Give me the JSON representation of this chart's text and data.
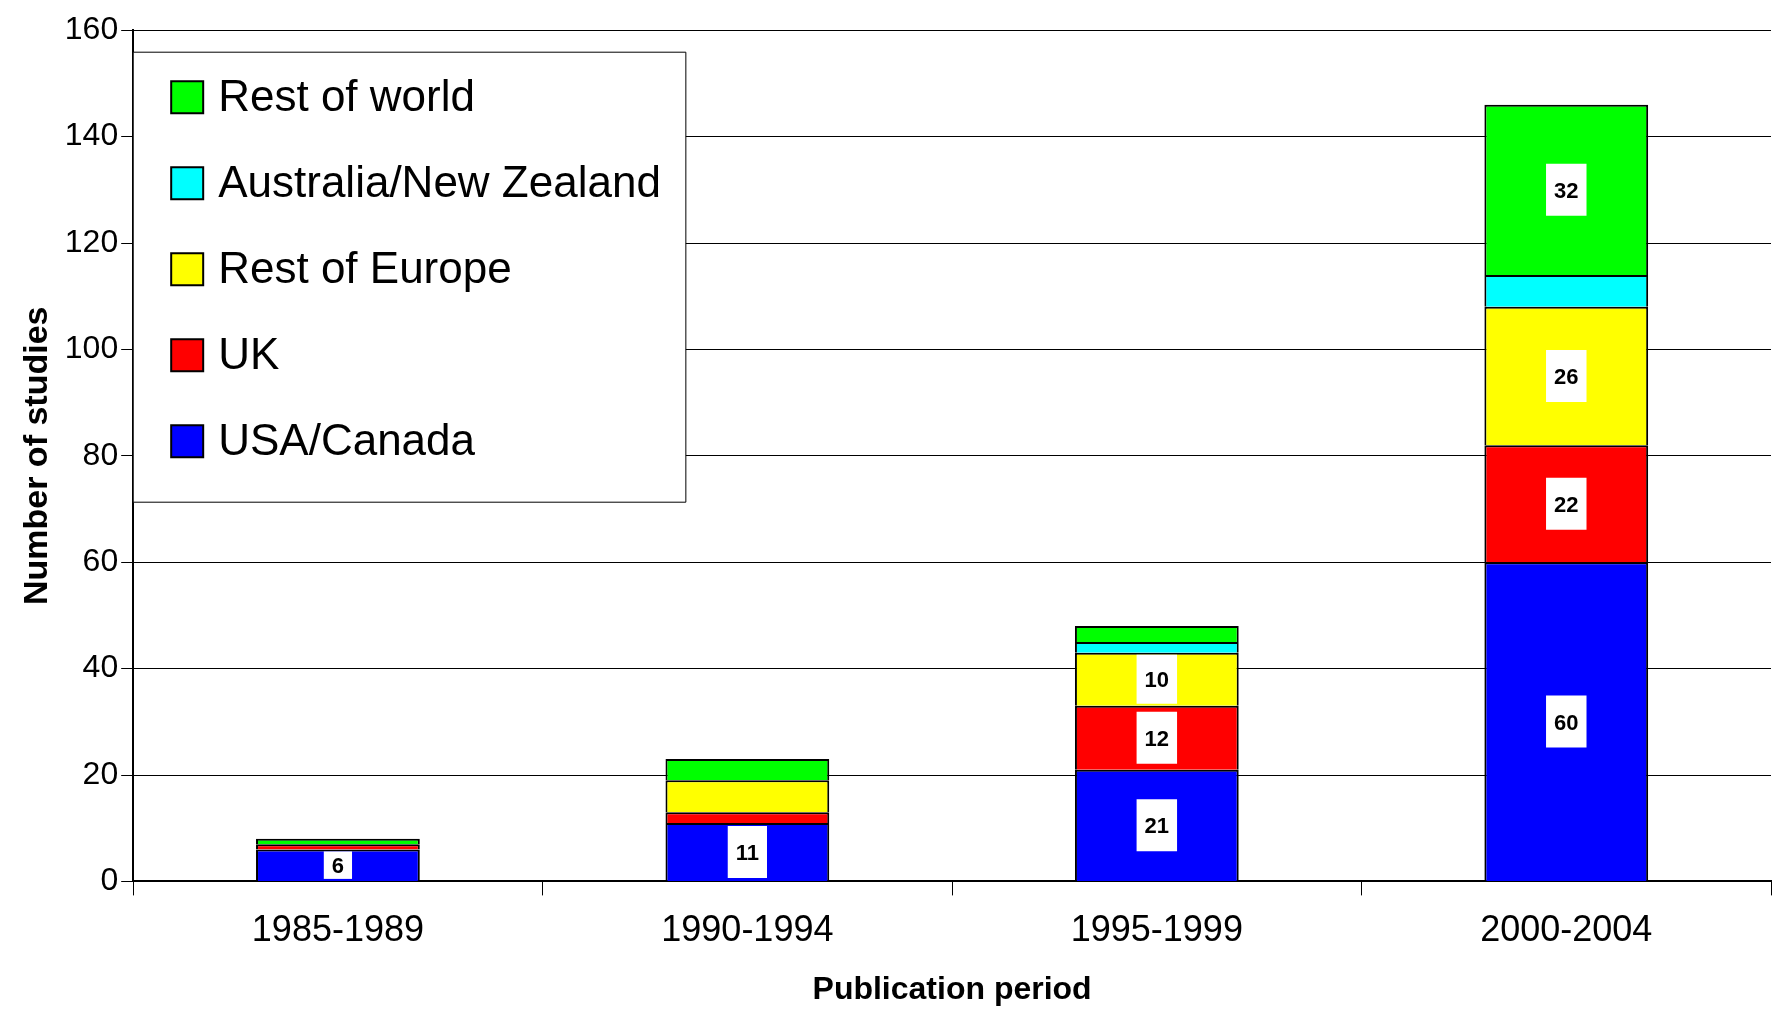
{
  "chart_data": {
    "type": "bar",
    "stacked": true,
    "xlabel": "Publication period",
    "ylabel": "Number of studies",
    "categories": [
      "1985-1989",
      "1990-1994",
      "1995-1999",
      "2000-2004"
    ],
    "series": [
      {
        "name": "USA/Canada",
        "color": "#0000ff",
        "values": [
          6,
          11,
          21,
          60
        ],
        "value_labels": [
          "6",
          "11",
          "21",
          "60"
        ]
      },
      {
        "name": "UK",
        "color": "#ff0000",
        "values": [
          1,
          2,
          12,
          22
        ],
        "value_labels": [
          null,
          null,
          "12",
          "22"
        ]
      },
      {
        "name": "Rest of Europe",
        "color": "#ffff00",
        "values": [
          0,
          6,
          10,
          26
        ],
        "value_labels": [
          null,
          null,
          "10",
          "26"
        ]
      },
      {
        "name": "Australia/New Zealand",
        "color": "#00ffff",
        "values": [
          0,
          0,
          2,
          6
        ],
        "value_labels": [
          null,
          null,
          null,
          null
        ]
      },
      {
        "name": "Rest of world",
        "color": "#00ff00",
        "values": [
          1,
          4,
          3,
          32
        ],
        "value_labels": [
          null,
          null,
          null,
          "32"
        ]
      }
    ],
    "ylim": [
      0,
      160
    ],
    "yticks": [
      0,
      20,
      40,
      60,
      80,
      100,
      120,
      140,
      160
    ],
    "grid": "y",
    "legend": "top left"
  }
}
